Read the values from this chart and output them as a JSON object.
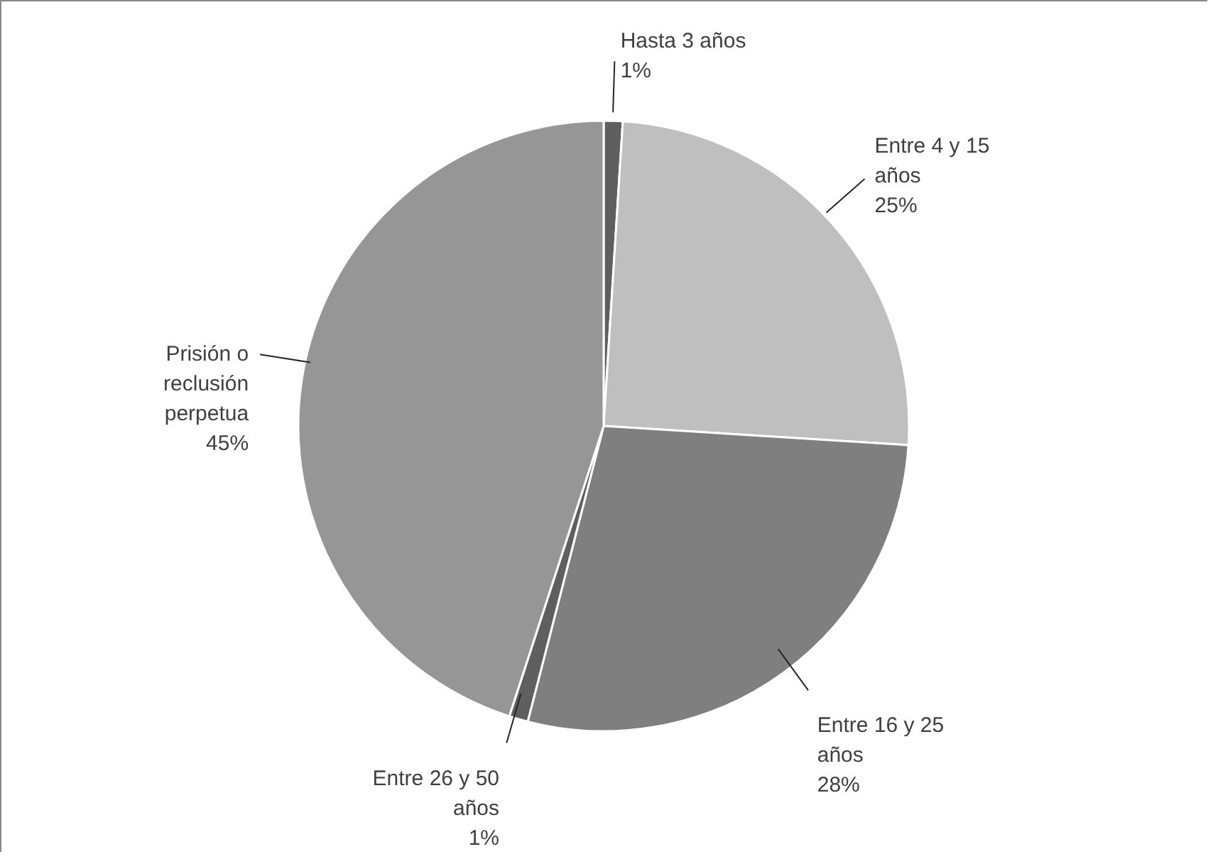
{
  "chart_data": {
    "type": "pie",
    "categories": [
      "Hasta 3 años",
      "Entre 4 y 15 años",
      "Entre 16 y 25 años",
      "Entre 26 y 50 años",
      "Prisión o reclusión perpetua"
    ],
    "values": [
      1,
      25,
      28,
      1,
      45
    ],
    "colors": [
      "#5f5f5f",
      "#bfbfbf",
      "#7f7f7f",
      "#5f5f5f",
      "#969696"
    ],
    "value_labels": [
      "1%",
      "25%",
      "28%",
      "1%",
      "45%"
    ]
  }
}
